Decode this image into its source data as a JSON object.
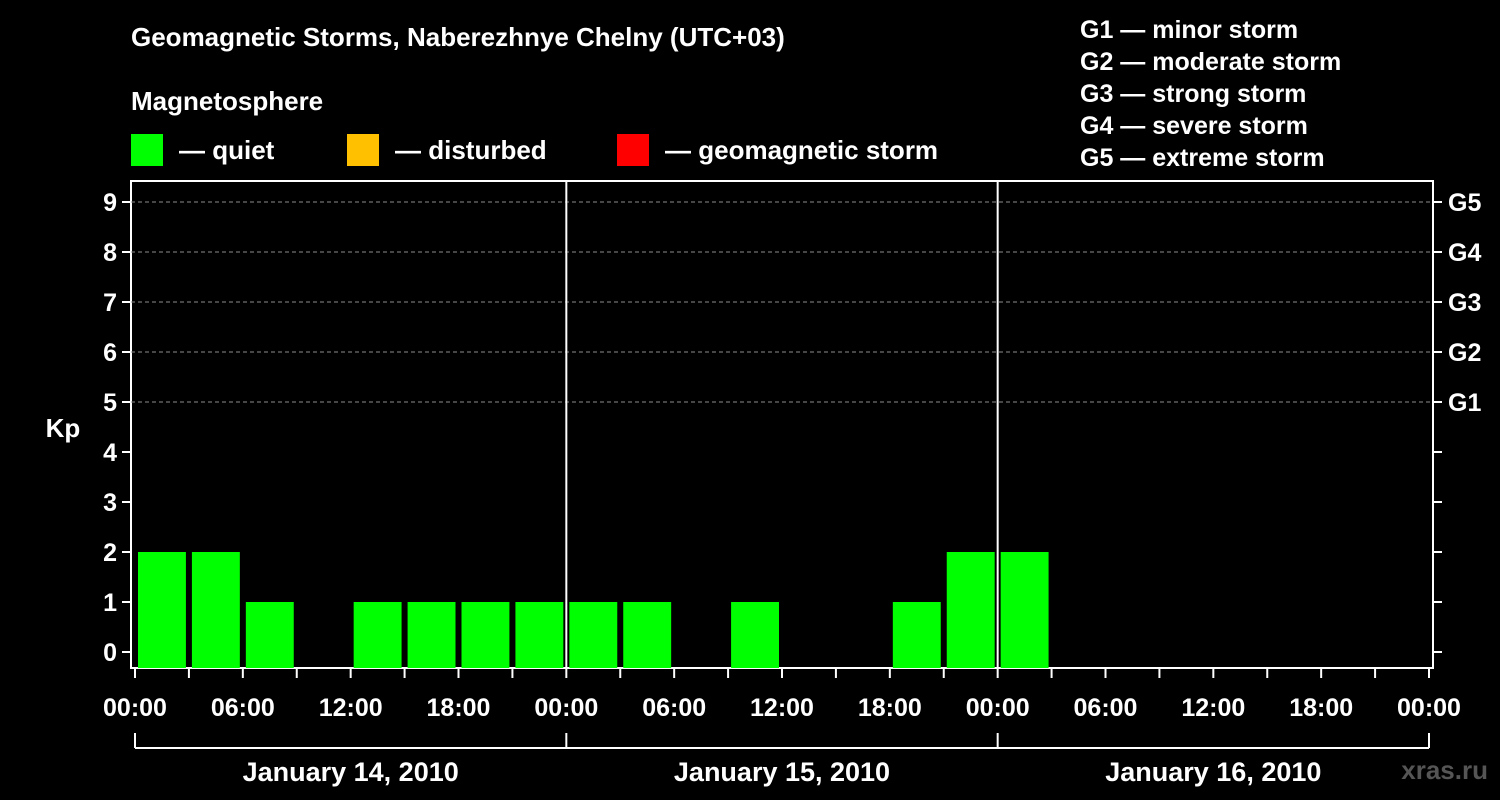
{
  "header": {
    "title": "Geomagnetic Storms, Naberezhnye Chelny (UTC+03)",
    "subtitle": "Magnetosphere"
  },
  "legend": {
    "items": [
      {
        "label": "— quiet",
        "color": "#00ff00"
      },
      {
        "label": "— disturbed",
        "color": "#ffc000"
      },
      {
        "label": "— geomagnetic storm",
        "color": "#ff0000"
      }
    ]
  },
  "storm_scale": [
    "G1 — minor storm",
    "G2 — moderate storm",
    "G3 — strong storm",
    "G4 — severe storm",
    "G5 — extreme storm"
  ],
  "watermark": "xras.ru",
  "colors": {
    "background": "#000000",
    "quiet": "#00ff00",
    "disturbed": "#ffc000",
    "storm": "#ff0000",
    "axis": "#ffffff",
    "grid": "#8c8c8c"
  },
  "chart_data": {
    "type": "bar",
    "ylabel": "Kp",
    "ylim": [
      0,
      9
    ],
    "yticks": [
      0,
      1,
      2,
      3,
      4,
      5,
      6,
      7,
      8,
      9
    ],
    "right_ticks": [
      {
        "kp": 5,
        "label": "G1"
      },
      {
        "kp": 6,
        "label": "G2"
      },
      {
        "kp": 7,
        "label": "G3"
      },
      {
        "kp": 8,
        "label": "G4"
      },
      {
        "kp": 9,
        "label": "G5"
      }
    ],
    "grid": "dashed horizontal at Kp 5–9",
    "x_range_hours": [
      0,
      72
    ],
    "x_tick_labels": [
      "00:00",
      "06:00",
      "12:00",
      "18:00",
      "00:00",
      "06:00",
      "12:00",
      "18:00",
      "00:00",
      "06:00",
      "12:00",
      "18:00",
      "00:00"
    ],
    "day_labels": [
      "January 14, 2010",
      "January 15, 2010",
      "January 16, 2010"
    ],
    "bar_interval_hours": 3,
    "values": [
      2,
      2,
      1,
      0,
      1,
      1,
      1,
      1,
      1,
      1,
      0,
      1,
      0,
      0,
      1,
      2,
      2
    ],
    "bar_color": "#00ff00"
  }
}
